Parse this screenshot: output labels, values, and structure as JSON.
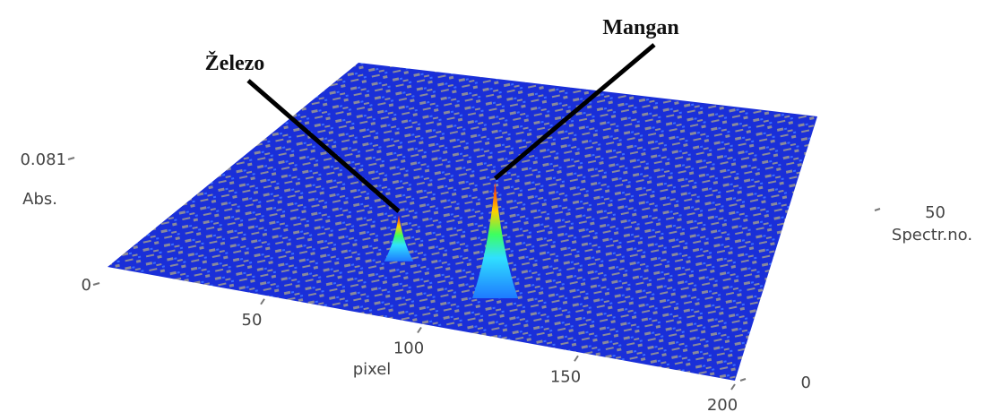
{
  "chart_data": {
    "type": "surface3d",
    "x_label": "pixel",
    "y_label": "Spectr.no.",
    "z_label": "Abs.",
    "xlim": [
      0,
      200
    ],
    "xticks": [
      50,
      100,
      150,
      200
    ],
    "ylim": [
      0,
      70
    ],
    "yticks": [
      0,
      50
    ],
    "zlim": [
      0,
      0.081
    ],
    "zticks": [
      0,
      0.081
    ],
    "peaks": [
      {
        "name": "Železo",
        "x": 80,
        "y": 15,
        "z": 0.03
      },
      {
        "name": "Mangan",
        "x": 115,
        "y": 10,
        "z": 0.075
      }
    ]
  }
}
